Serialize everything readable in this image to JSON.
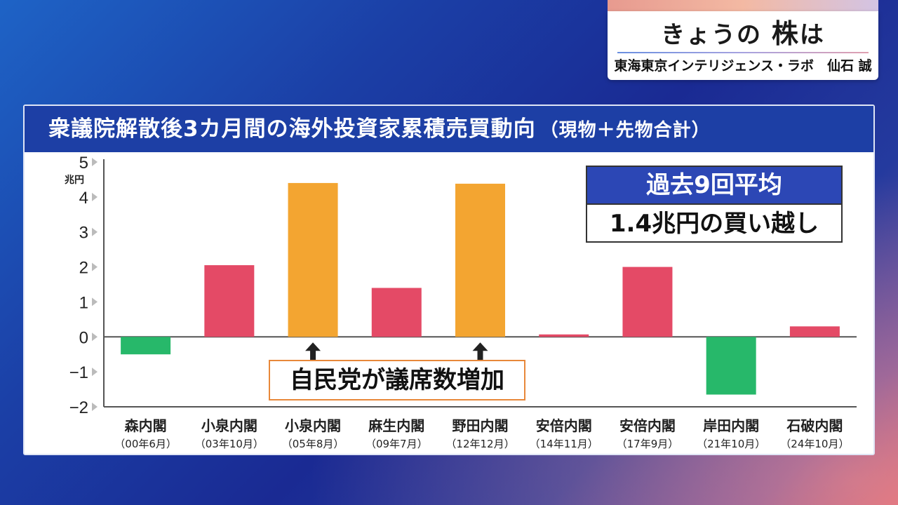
{
  "caption": {
    "title_pre": "きょうの",
    "title_big": "株",
    "title_post": "は",
    "subtitle": "東海東京インテリジェンス・ラボ　仙石 誠"
  },
  "panel": {
    "title": "衆議院解散後3カ月間の海外投資家累積売買動向",
    "note": "（現物＋先物合計）"
  },
  "average_box": {
    "head": "過去9回平均",
    "body": "1.4兆円の買い越し"
  },
  "annotation": {
    "text": "自民党が議席数増加",
    "arrow_targets": [
      2,
      4
    ]
  },
  "colors": {
    "buy": "#e44a66",
    "sell": "#27b86a",
    "highlight": "#f3a531",
    "header": "#1d3fa5"
  },
  "chart_data": {
    "type": "bar",
    "title": "衆議院解散後3カ月間の海外投資家累積売買動向（現物＋先物合計）",
    "ylabel": "兆円",
    "ylim": [
      -2,
      5
    ],
    "yticks": [
      5,
      4,
      3,
      2,
      1,
      0,
      -1,
      -2
    ],
    "ytick_labels": [
      "5",
      "4",
      "3",
      "2",
      "1",
      "0",
      "−1",
      "−2"
    ],
    "categories": [
      "森内閣",
      "小泉内閣",
      "小泉内閣",
      "麻生内閣",
      "野田内閣",
      "安倍内閣",
      "安倍内閣",
      "岸田内閣",
      "石破内閣"
    ],
    "sublabels": [
      "（00年6月）",
      "（03年10月）",
      "（05年8月）",
      "（09年7月）",
      "（12年12月）",
      "（14年11月）",
      "（17年9月）",
      "（21年10月）",
      "（24年10月）"
    ],
    "values": [
      -0.5,
      2.05,
      4.4,
      1.4,
      4.38,
      0.07,
      2.0,
      -1.65,
      0.3
    ],
    "bar_colors": [
      "sell",
      "buy",
      "highlight",
      "buy",
      "highlight",
      "buy",
      "buy",
      "sell",
      "buy"
    ],
    "grid": false
  }
}
